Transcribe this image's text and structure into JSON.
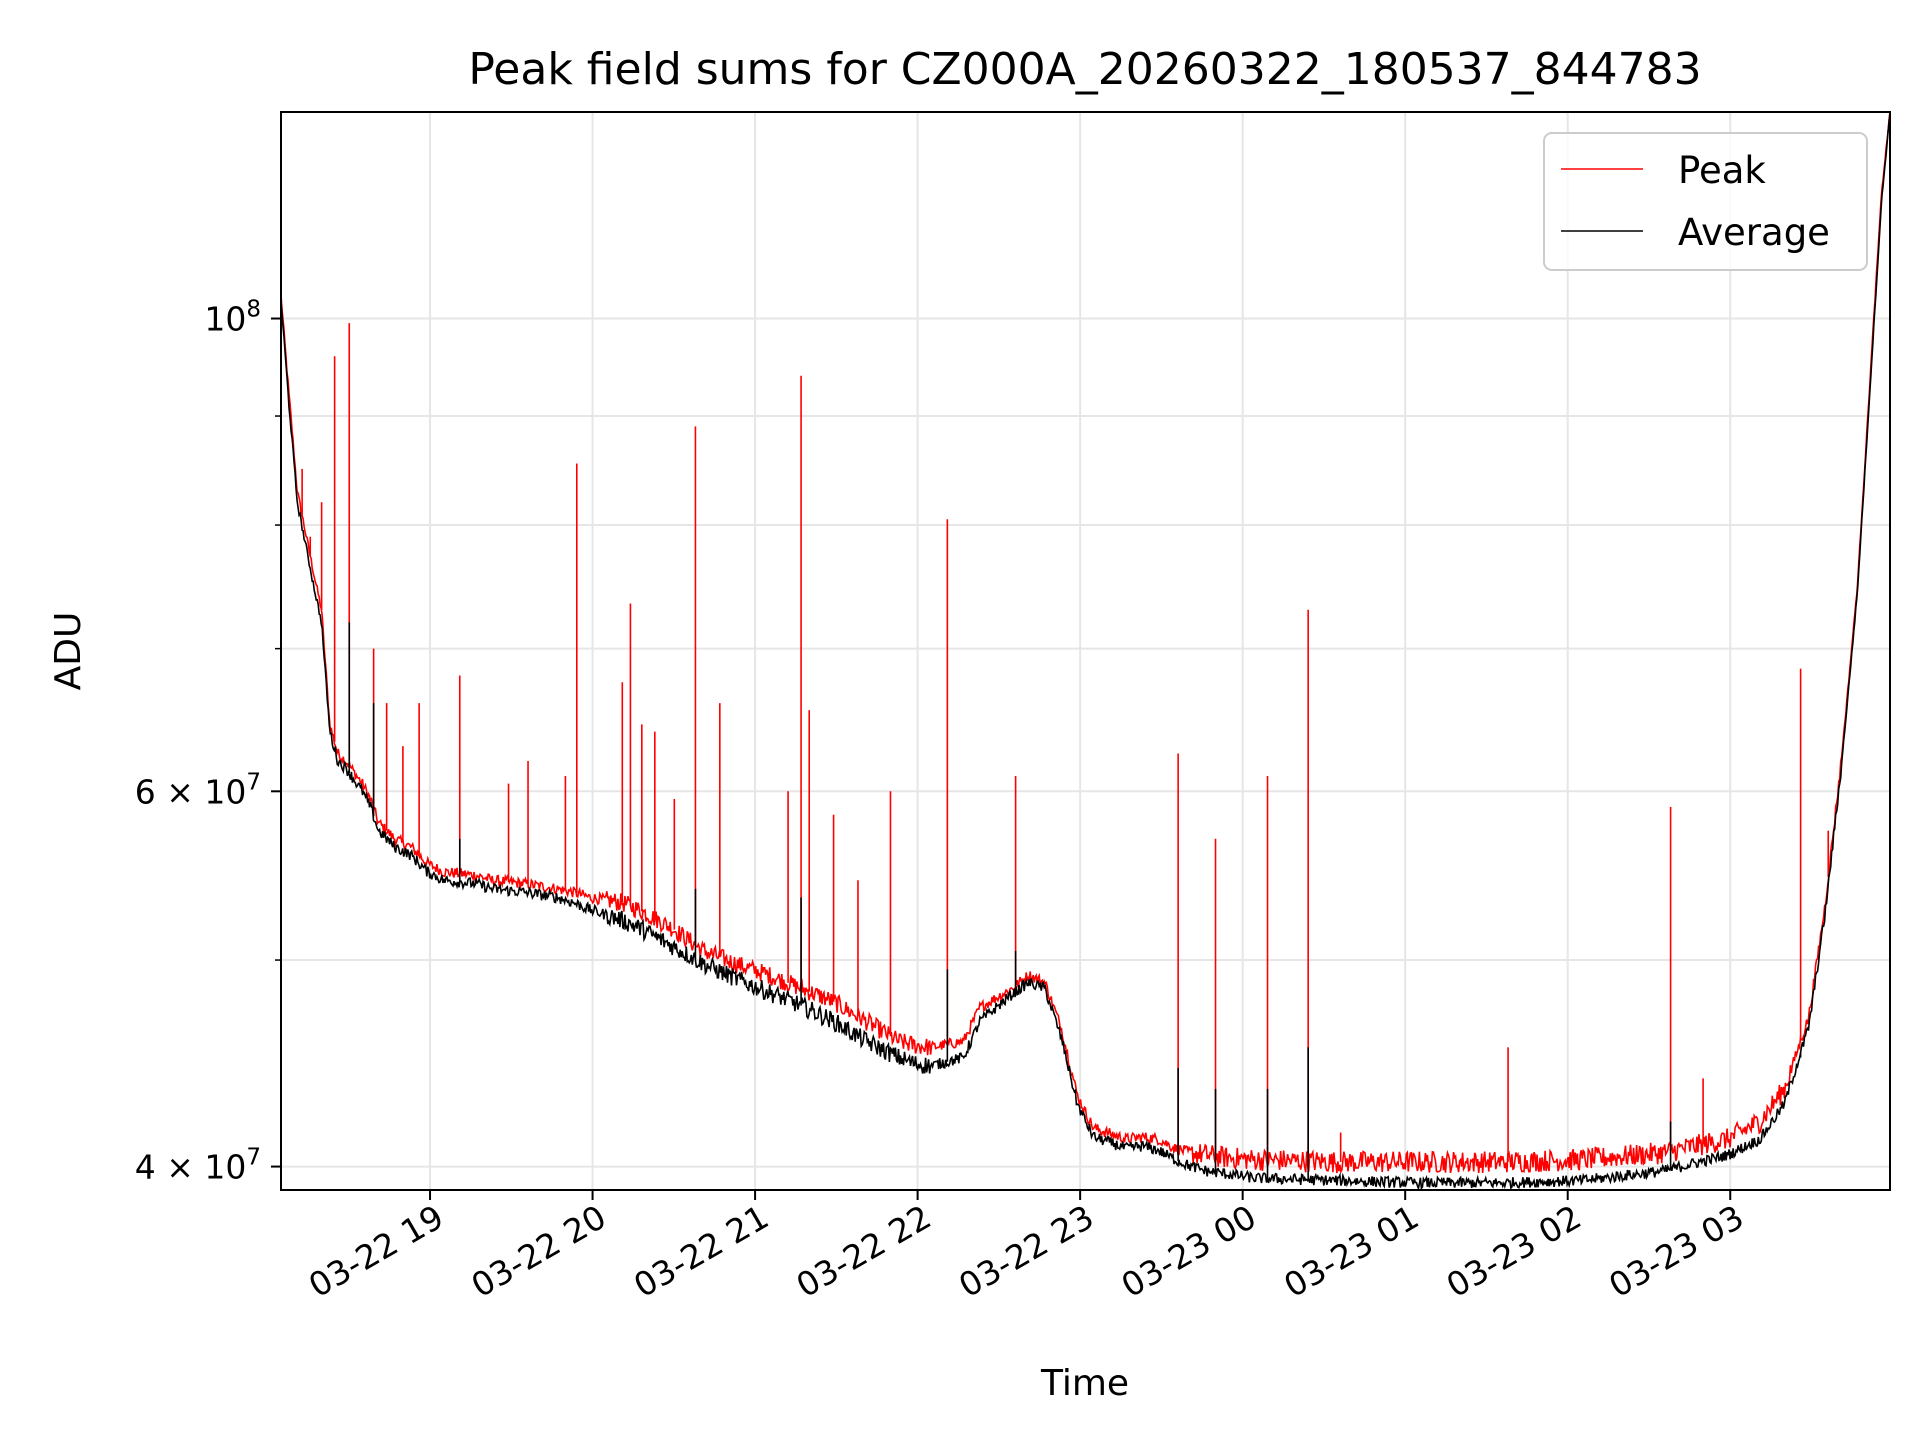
{
  "chart_data": {
    "type": "line",
    "title": "Peak field sums for CZ000A_20260322_180537_844783",
    "xlabel": "Time",
    "ylabel": "ADU",
    "yscale": "log",
    "ylim": [
      39000000,
      125000000
    ],
    "xlim_hours": [
      0.0,
      9.9
    ],
    "x_origin": "03-22 18:05",
    "grid": true,
    "legend_position": "top-right",
    "x_ticks": [
      {
        "hour": 0.917,
        "label": "03-22 19"
      },
      {
        "hour": 1.917,
        "label": "03-22 20"
      },
      {
        "hour": 2.917,
        "label": "03-22 21"
      },
      {
        "hour": 3.917,
        "label": "03-22 22"
      },
      {
        "hour": 4.917,
        "label": "03-22 23"
      },
      {
        "hour": 5.917,
        "label": "03-23 00"
      },
      {
        "hour": 6.917,
        "label": "03-23 01"
      },
      {
        "hour": 7.917,
        "label": "03-23 02"
      },
      {
        "hour": 8.917,
        "label": "03-23 03"
      }
    ],
    "y_ticks": [
      {
        "value": 40000000,
        "label_base": "4 × 10",
        "label_exp": "7"
      },
      {
        "value": 60000000,
        "label_base": "6 × 10",
        "label_exp": "7"
      },
      {
        "value": 100000000,
        "label_base": "10",
        "label_exp": "8"
      }
    ],
    "y_minor_ticks": [
      50000000,
      70000000,
      80000000,
      90000000
    ],
    "series": [
      {
        "name": "Peak",
        "color": "#ff0000",
        "baseline_hours": [
          0.0,
          0.05,
          0.1,
          0.2,
          0.25,
          0.3,
          0.35,
          0.4,
          0.5,
          0.55,
          0.6,
          0.7,
          0.8,
          0.85,
          0.9,
          1.0,
          1.2,
          1.3,
          1.5,
          1.7,
          1.8,
          1.9,
          2.1,
          2.2,
          2.4,
          2.6,
          2.8,
          3.0,
          3.2,
          3.4,
          3.6,
          3.8,
          3.9,
          4.0,
          4.2,
          4.3,
          4.5,
          4.6,
          4.7,
          4.8,
          4.9,
          4.95,
          5.0,
          5.2,
          5.3,
          5.4,
          5.5,
          5.6,
          5.7,
          5.8,
          6.0,
          6.5,
          7.0,
          7.5,
          8.0,
          8.5,
          8.9,
          9.1,
          9.25,
          9.4,
          9.5,
          9.6,
          9.7,
          9.8,
          9.85,
          9.9
        ],
        "baseline_values": [
          102500000,
          92000000,
          83000000,
          76000000,
          73000000,
          64500000,
          62500000,
          62000000,
          60500000,
          59500000,
          58000000,
          57000000,
          56500000,
          56000000,
          55500000,
          55000000,
          54800000,
          54500000,
          54300000,
          54000000,
          53800000,
          53500000,
          53200000,
          52800000,
          51800000,
          50500000,
          49800000,
          49200000,
          48500000,
          47800000,
          46800000,
          45800000,
          45600000,
          45500000,
          45800000,
          47500000,
          48500000,
          49200000,
          48800000,
          46500000,
          43200000,
          42400000,
          41700000,
          41200000,
          41300000,
          41200000,
          40800000,
          40600000,
          40500000,
          40400000,
          40300000,
          40200000,
          40200000,
          40200000,
          40300000,
          40600000,
          41200000,
          42000000,
          43500000,
          47000000,
          53000000,
          62000000,
          75000000,
          100000000,
          115000000,
          125000000
        ],
        "spikes": [
          {
            "hour": 0.13,
            "value": 85000000
          },
          {
            "hour": 0.18,
            "value": 79000000
          },
          {
            "hour": 0.25,
            "value": 82000000
          },
          {
            "hour": 0.33,
            "value": 96000000
          },
          {
            "hour": 0.42,
            "value": 99500000
          },
          {
            "hour": 0.57,
            "value": 70000000
          },
          {
            "hour": 0.65,
            "value": 66000000
          },
          {
            "hour": 0.75,
            "value": 63000000
          },
          {
            "hour": 0.85,
            "value": 66000000
          },
          {
            "hour": 1.1,
            "value": 68000000
          },
          {
            "hour": 1.4,
            "value": 60500000
          },
          {
            "hour": 1.52,
            "value": 62000000
          },
          {
            "hour": 1.75,
            "value": 61000000
          },
          {
            "hour": 1.82,
            "value": 85500000
          },
          {
            "hour": 2.1,
            "value": 67500000
          },
          {
            "hour": 2.15,
            "value": 73500000
          },
          {
            "hour": 2.22,
            "value": 64500000
          },
          {
            "hour": 2.3,
            "value": 64000000
          },
          {
            "hour": 2.42,
            "value": 59500000
          },
          {
            "hour": 2.55,
            "value": 89000000
          },
          {
            "hour": 2.7,
            "value": 66000000
          },
          {
            "hour": 3.12,
            "value": 60000000
          },
          {
            "hour": 3.2,
            "value": 94000000
          },
          {
            "hour": 3.25,
            "value": 65500000
          },
          {
            "hour": 3.4,
            "value": 58500000
          },
          {
            "hour": 3.55,
            "value": 54500000
          },
          {
            "hour": 3.75,
            "value": 60000000
          },
          {
            "hour": 4.1,
            "value": 80500000
          },
          {
            "hour": 4.52,
            "value": 61000000
          },
          {
            "hour": 5.52,
            "value": 62500000
          },
          {
            "hour": 5.75,
            "value": 57000000
          },
          {
            "hour": 6.07,
            "value": 61000000
          },
          {
            "hour": 6.32,
            "value": 73000000
          },
          {
            "hour": 6.52,
            "value": 41500000
          },
          {
            "hour": 7.55,
            "value": 45500000
          },
          {
            "hour": 8.55,
            "value": 59000000
          },
          {
            "hour": 8.75,
            "value": 44000000
          },
          {
            "hour": 9.35,
            "value": 68500000
          },
          {
            "hour": 9.52,
            "value": 57500000
          }
        ]
      },
      {
        "name": "Average",
        "color": "#000000",
        "baseline_hours": [
          0.0,
          0.05,
          0.1,
          0.2,
          0.25,
          0.3,
          0.35,
          0.4,
          0.5,
          0.55,
          0.6,
          0.7,
          0.8,
          0.85,
          0.9,
          1.0,
          1.2,
          1.3,
          1.5,
          1.7,
          1.8,
          1.9,
          2.1,
          2.2,
          2.4,
          2.6,
          2.8,
          3.0,
          3.2,
          3.4,
          3.6,
          3.8,
          3.9,
          4.0,
          4.2,
          4.3,
          4.5,
          4.6,
          4.7,
          4.8,
          4.9,
          4.95,
          5.0,
          5.2,
          5.3,
          5.4,
          5.5,
          5.6,
          5.7,
          5.8,
          6.0,
          6.5,
          7.0,
          7.5,
          8.0,
          8.5,
          8.9,
          9.1,
          9.25,
          9.4,
          9.5,
          9.6,
          9.7,
          9.8,
          9.85,
          9.9
        ],
        "baseline_values": [
          102000000,
          91000000,
          82000000,
          75000000,
          72000000,
          64000000,
          62000000,
          61500000,
          60000000,
          59000000,
          57500000,
          56500000,
          56000000,
          55500000,
          55000000,
          54500000,
          54300000,
          54000000,
          53800000,
          53500000,
          53200000,
          52800000,
          52200000,
          51800000,
          50800000,
          49800000,
          49000000,
          48300000,
          47600000,
          46800000,
          45800000,
          45000000,
          44700000,
          44600000,
          45000000,
          46800000,
          48200000,
          48800000,
          48500000,
          46000000,
          42800000,
          42000000,
          41300000,
          40800000,
          40900000,
          40700000,
          40300000,
          40000000,
          39800000,
          39700000,
          39500000,
          39400000,
          39300000,
          39300000,
          39400000,
          39800000,
          40500000,
          41200000,
          42800000,
          46500000,
          52500000,
          61500000,
          74500000,
          99000000,
          114000000,
          125000000
        ],
        "spikes": [
          {
            "hour": 0.42,
            "value": 72000000
          },
          {
            "hour": 0.57,
            "value": 66000000
          },
          {
            "hour": 1.1,
            "value": 57000000
          },
          {
            "hour": 2.55,
            "value": 54000000
          },
          {
            "hour": 3.2,
            "value": 53500000
          },
          {
            "hour": 4.1,
            "value": 49500000
          },
          {
            "hour": 4.52,
            "value": 50500000
          },
          {
            "hour": 5.52,
            "value": 44500000
          },
          {
            "hour": 5.75,
            "value": 43500000
          },
          {
            "hour": 6.07,
            "value": 43500000
          },
          {
            "hour": 6.32,
            "value": 45500000
          },
          {
            "hour": 8.55,
            "value": 42000000
          },
          {
            "hour": 9.35,
            "value": 45000000
          }
        ]
      }
    ]
  }
}
